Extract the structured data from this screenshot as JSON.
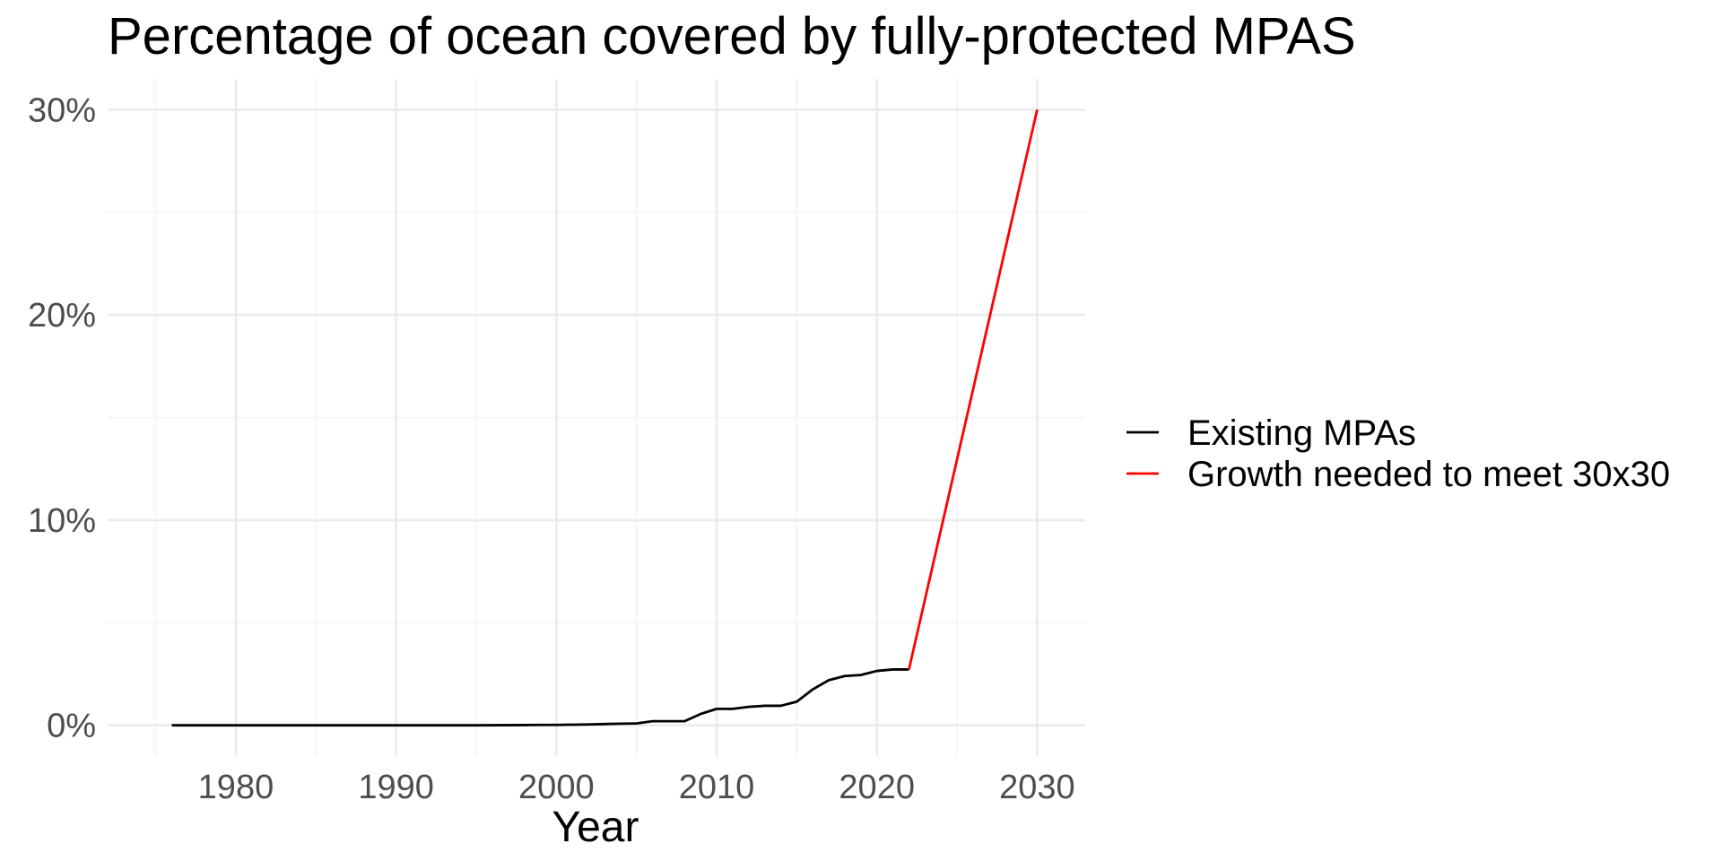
{
  "chart_data": {
    "type": "line",
    "title": "Percentage of ocean covered by fully-protected MPAS",
    "xlabel": "Year",
    "ylabel": "",
    "xlim": [
      1972,
      2033
    ],
    "ylim": [
      -1.5,
      31.5
    ],
    "x_ticks": [
      1980,
      1990,
      2000,
      2010,
      2020,
      2030
    ],
    "x_tick_labels": [
      "1980",
      "1990",
      "2000",
      "2010",
      "2020",
      "2030"
    ],
    "y_ticks": [
      0,
      10,
      20,
      30
    ],
    "y_tick_labels": [
      "0%",
      "10%",
      "20%",
      "30%"
    ],
    "y_unit": "%",
    "grid": true,
    "legend_position": "right",
    "series": [
      {
        "name": "Existing MPAs",
        "color": "#000000",
        "points": [
          [
            1976,
            0.0
          ],
          [
            1980,
            0.0
          ],
          [
            1985,
            0.0
          ],
          [
            1990,
            0.0
          ],
          [
            1995,
            0.0
          ],
          [
            1998,
            0.01
          ],
          [
            1999,
            0.02
          ],
          [
            2000,
            0.02
          ],
          [
            2001,
            0.03
          ],
          [
            2002,
            0.04
          ],
          [
            2003,
            0.06
          ],
          [
            2004,
            0.08
          ],
          [
            2005,
            0.09
          ],
          [
            2006,
            0.2
          ],
          [
            2007,
            0.2
          ],
          [
            2008,
            0.2
          ],
          [
            2009,
            0.55
          ],
          [
            2010,
            0.8
          ],
          [
            2011,
            0.8
          ],
          [
            2012,
            0.9
          ],
          [
            2013,
            0.95
          ],
          [
            2014,
            0.95
          ],
          [
            2015,
            1.15
          ],
          [
            2016,
            1.75
          ],
          [
            2017,
            2.2
          ],
          [
            2018,
            2.4
          ],
          [
            2019,
            2.45
          ],
          [
            2020,
            2.65
          ],
          [
            2021,
            2.72
          ],
          [
            2022,
            2.72
          ]
        ]
      },
      {
        "name": "Growth needed to meet 30x30",
        "color": "#ff0000",
        "points": [
          [
            2022,
            2.72
          ],
          [
            2030,
            30.0
          ]
        ]
      }
    ]
  }
}
